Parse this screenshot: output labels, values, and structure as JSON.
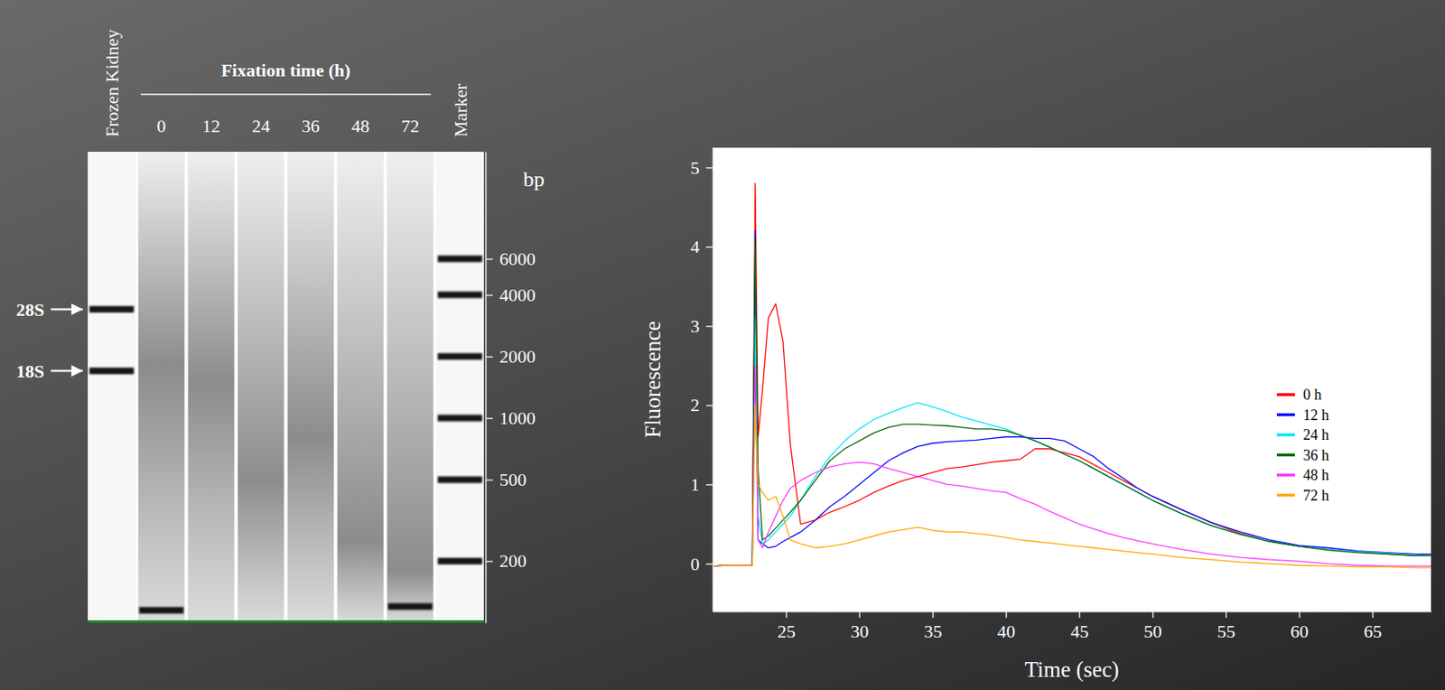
{
  "chart_data": [
    {
      "type": "gel",
      "y_label": "bp",
      "log": "y",
      "ylim": [
        100,
        20000
      ],
      "yticks": [
        200,
        500,
        1000,
        2000,
        4000,
        6000
      ],
      "annotations": [
        {
          "text": "28S",
          "y": 3400
        },
        {
          "text": "18S",
          "y": 1700
        }
      ],
      "lanes": [
        {
          "label": "Frozen Kidney",
          "bands": [
            3400,
            1700
          ]
        },
        {
          "label": "0",
          "group": "Fixation time (h)",
          "smear": [
            100,
            1800,
            20000
          ],
          "bands": [
            115
          ]
        },
        {
          "label": "12",
          "group": "Fixation time (h)",
          "smear": [
            100,
            1500,
            20000
          ]
        },
        {
          "label": "24",
          "group": "Fixation time (h)",
          "smear": [
            100,
            500,
            20000
          ]
        },
        {
          "label": "36",
          "group": "Fixation time (h)",
          "smear": [
            100,
            800,
            20000
          ]
        },
        {
          "label": "48",
          "group": "Fixation time (h)",
          "smear": [
            100,
            250,
            20000
          ]
        },
        {
          "label": "72",
          "group": "Fixation time (h)",
          "smear": [
            100,
            180,
            20000
          ],
          "bands": [
            120
          ]
        },
        {
          "label": "Marker",
          "bands": [
            6000,
            4000,
            2000,
            1000,
            500,
            200
          ]
        }
      ]
    },
    {
      "type": "line",
      "x_label": "Time (sec)",
      "y_label": "Fluorescence",
      "xlim": [
        20,
        69
      ],
      "ylim": [
        -0.6,
        5.25
      ],
      "xticks": [
        25,
        30,
        35,
        40,
        45,
        50,
        55,
        60,
        65
      ],
      "yticks": [
        0,
        1,
        2,
        3,
        4,
        5
      ],
      "legend": "right",
      "x": [
        20,
        21,
        22,
        22.7,
        22.9,
        23.1,
        23.4,
        23.8,
        24.3,
        24.8,
        25.3,
        26,
        27,
        28,
        29,
        30,
        31,
        32,
        33,
        34,
        35,
        36,
        37,
        38,
        39,
        40,
        41,
        42,
        43,
        44,
        45,
        46,
        47,
        48,
        49,
        50,
        52,
        54,
        56,
        58,
        60,
        62,
        64,
        66,
        68,
        69
      ],
      "series": [
        {
          "name": "0 h",
          "color": "#ff0000",
          "values": [
            -0.03,
            -0.02,
            -0.02,
            -0.02,
            4.8,
            1.6,
            2.2,
            3.1,
            3.28,
            2.8,
            1.5,
            0.5,
            0.55,
            0.65,
            0.72,
            0.8,
            0.9,
            0.98,
            1.05,
            1.1,
            1.15,
            1.2,
            1.22,
            1.25,
            1.28,
            1.3,
            1.32,
            1.45,
            1.45,
            1.4,
            1.35,
            1.25,
            1.15,
            1.05,
            0.95,
            0.85,
            0.68,
            0.52,
            0.38,
            0.28,
            0.22,
            0.18,
            0.15,
            0.12,
            0.1,
            0.1
          ]
        },
        {
          "name": "12 h",
          "color": "#0000ff",
          "values": [
            -0.03,
            -0.02,
            -0.02,
            -0.02,
            4.2,
            0.3,
            0.25,
            0.2,
            0.22,
            0.28,
            0.33,
            0.4,
            0.55,
            0.72,
            0.85,
            1.0,
            1.15,
            1.3,
            1.4,
            1.48,
            1.52,
            1.54,
            1.55,
            1.56,
            1.58,
            1.6,
            1.6,
            1.58,
            1.58,
            1.55,
            1.45,
            1.35,
            1.2,
            1.08,
            0.95,
            0.85,
            0.68,
            0.52,
            0.4,
            0.3,
            0.23,
            0.2,
            0.16,
            0.14,
            0.12,
            0.12
          ]
        },
        {
          "name": "24 h",
          "color": "#00e5ff",
          "values": [
            -0.03,
            -0.02,
            -0.02,
            -0.02,
            3.1,
            0.6,
            0.25,
            0.3,
            0.4,
            0.5,
            0.6,
            0.8,
            1.1,
            1.35,
            1.55,
            1.7,
            1.82,
            1.9,
            1.97,
            2.03,
            1.98,
            1.92,
            1.85,
            1.8,
            1.75,
            1.7,
            1.62,
            1.55,
            1.47,
            1.38,
            1.3,
            1.2,
            1.1,
            1.0,
            0.9,
            0.8,
            0.63,
            0.48,
            0.37,
            0.28,
            0.22,
            0.18,
            0.15,
            0.13,
            0.11,
            0.1
          ]
        },
        {
          "name": "36 h",
          "color": "#006400",
          "values": [
            -0.03,
            -0.02,
            -0.02,
            -0.02,
            4.1,
            1.2,
            0.3,
            0.35,
            0.45,
            0.55,
            0.65,
            0.8,
            1.05,
            1.3,
            1.45,
            1.55,
            1.65,
            1.72,
            1.76,
            1.76,
            1.75,
            1.74,
            1.72,
            1.7,
            1.7,
            1.68,
            1.62,
            1.55,
            1.47,
            1.38,
            1.3,
            1.2,
            1.1,
            1.0,
            0.9,
            0.8,
            0.63,
            0.48,
            0.37,
            0.28,
            0.22,
            0.17,
            0.14,
            0.12,
            0.1,
            0.1
          ]
        },
        {
          "name": "48 h",
          "color": "#ff33ff",
          "values": [
            -0.03,
            -0.02,
            -0.02,
            -0.02,
            2.5,
            0.3,
            0.2,
            0.4,
            0.6,
            0.8,
            0.95,
            1.05,
            1.15,
            1.22,
            1.26,
            1.28,
            1.26,
            1.2,
            1.15,
            1.1,
            1.05,
            1.0,
            0.98,
            0.95,
            0.92,
            0.9,
            0.82,
            0.75,
            0.66,
            0.58,
            0.5,
            0.44,
            0.38,
            0.33,
            0.29,
            0.25,
            0.18,
            0.12,
            0.08,
            0.05,
            0.03,
            0.0,
            -0.02,
            -0.03,
            -0.03,
            -0.03
          ]
        },
        {
          "name": "72 h",
          "color": "#ffa500",
          "values": [
            -0.03,
            -0.02,
            -0.02,
            -0.02,
            2.0,
            1.0,
            0.9,
            0.8,
            0.85,
            0.6,
            0.3,
            0.25,
            0.2,
            0.22,
            0.25,
            0.3,
            0.35,
            0.4,
            0.43,
            0.46,
            0.42,
            0.4,
            0.4,
            0.38,
            0.36,
            0.33,
            0.3,
            0.28,
            0.26,
            0.24,
            0.22,
            0.2,
            0.18,
            0.16,
            0.14,
            0.12,
            0.08,
            0.05,
            0.02,
            0.0,
            -0.02,
            -0.03,
            -0.04,
            -0.04,
            -0.05,
            -0.05
          ]
        }
      ]
    }
  ]
}
